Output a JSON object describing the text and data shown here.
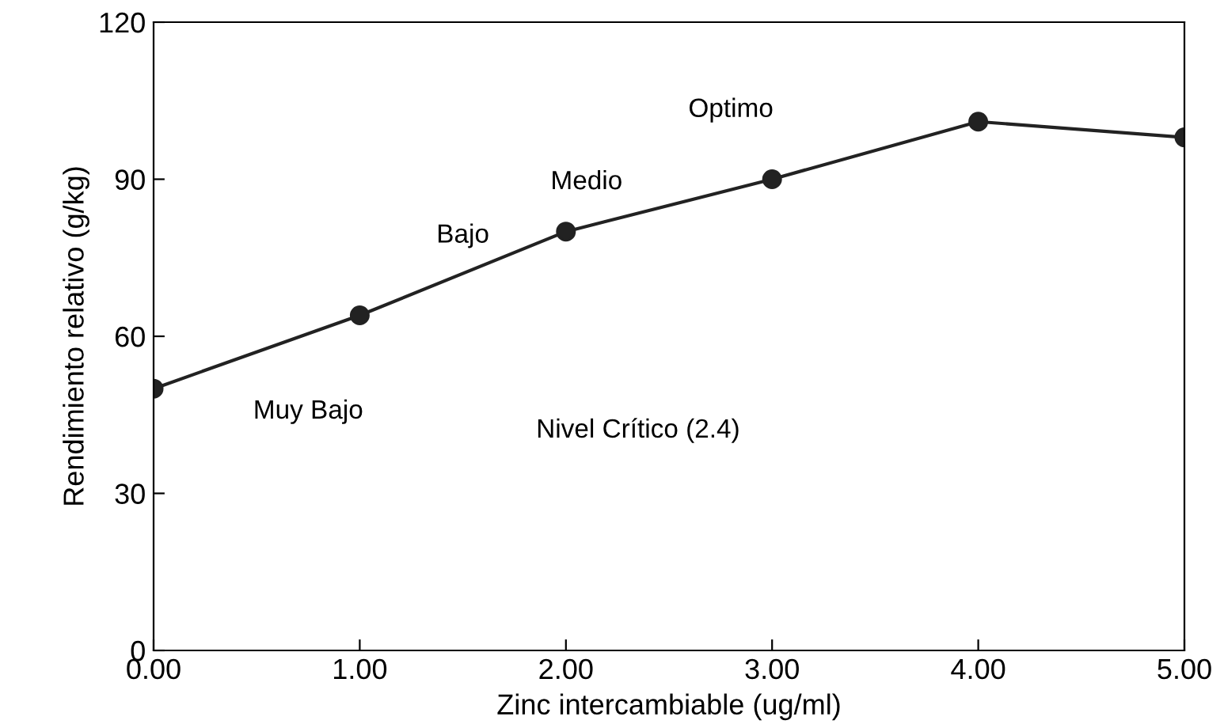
{
  "chart_data": {
    "type": "line",
    "xlabel": "Zinc intercambiable (ug/ml)",
    "ylabel": "Rendimiento relativo (g/kg)",
    "x": [
      0,
      1,
      2,
      3,
      4,
      5
    ],
    "series": [
      {
        "color": "#222222",
        "values": [
          50,
          64,
          80,
          90,
          101,
          98
        ]
      }
    ],
    "xlim": [
      0,
      5
    ],
    "ylim": [
      0,
      120
    ],
    "xticks": [
      {
        "value": 0,
        "label": "0.00"
      },
      {
        "value": 1,
        "label": "1.00"
      },
      {
        "value": 2,
        "label": "2.00"
      },
      {
        "value": 3,
        "label": "3.00"
      },
      {
        "value": 4,
        "label": "4.00"
      },
      {
        "value": 5,
        "label": "5.00"
      }
    ],
    "yticks": [
      0,
      30,
      60,
      90,
      120
    ],
    "marker": "circle",
    "line_style": "solid",
    "grid": false,
    "legend": false,
    "annotations": [
      "Muy Bajo",
      "Bajo",
      "Medio",
      "Optimo",
      "Nivel Crítico (2.4)"
    ]
  }
}
